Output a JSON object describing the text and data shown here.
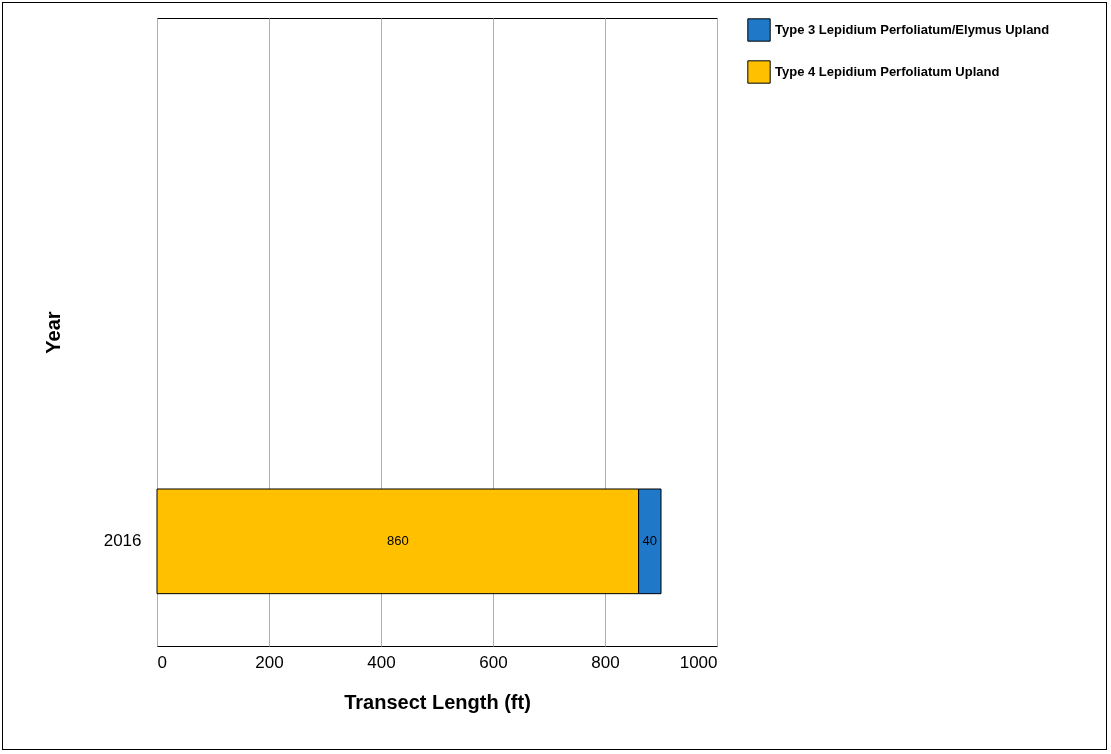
{
  "chart_data": {
    "type": "bar",
    "orientation": "horizontal",
    "stacked": true,
    "xlabel": "Transect Length (ft)",
    "ylabel": "Year",
    "categories": [
      null,
      null,
      "2016"
    ],
    "series": [
      {
        "name": "Type 4 Lepidium Perfoliatum Upland",
        "color": "#ffc000",
        "values": [
          null,
          null,
          860
        ]
      },
      {
        "name": "Type 3 Lepidium Perfoliatum/Elymus Upland",
        "color": "#1f78c8",
        "values": [
          null,
          null,
          40
        ]
      }
    ],
    "xlim": [
      0,
      1000
    ],
    "xticks": [
      0,
      200,
      400,
      600,
      800,
      1000
    ],
    "grid": "x",
    "data_labels": true,
    "legend": "right"
  }
}
